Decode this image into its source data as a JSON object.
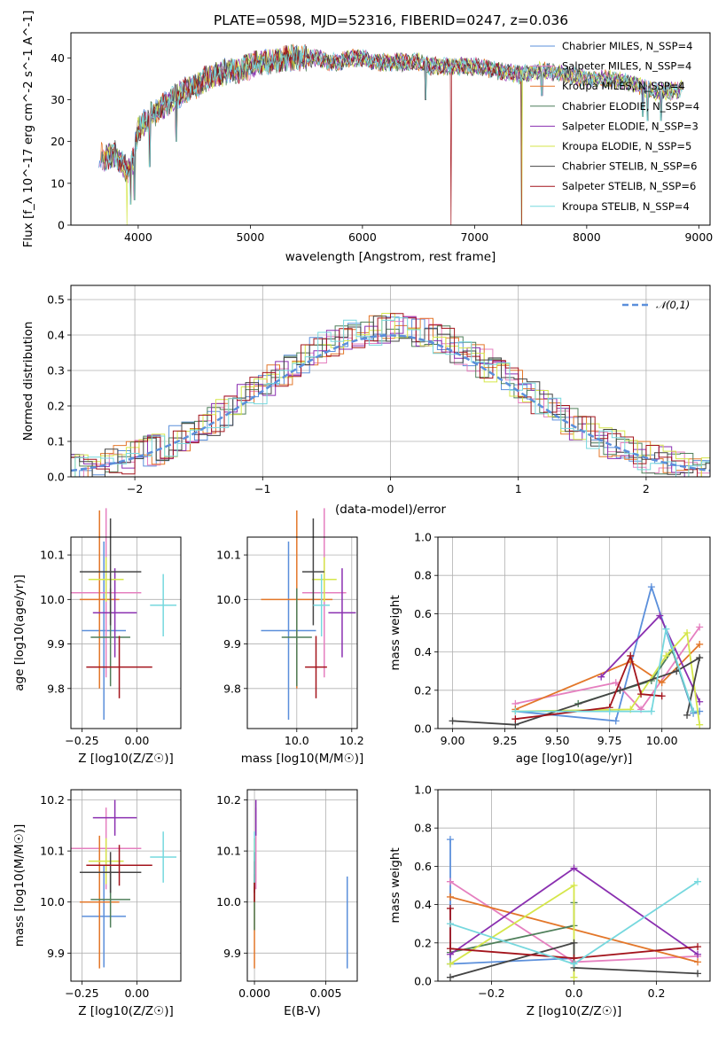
{
  "figure": {
    "title": "PLATE=0598, MJD=52316, FIBERID=0247, z=0.036"
  },
  "models": [
    {
      "name": "Chabrier MILES",
      "nssp": "4",
      "color": "#5b8fdb"
    },
    {
      "name": "Salpeter MILES",
      "nssp": "4",
      "color": "#e57fbf"
    },
    {
      "name": "Kroupa MILES",
      "nssp": "4",
      "color": "#e3772a"
    },
    {
      "name": "Chabrier ELODIE",
      "nssp": "4",
      "color": "#4f7f5a"
    },
    {
      "name": "Salpeter ELODIE",
      "nssp": "3",
      "color": "#8a2fb0"
    },
    {
      "name": "Kroupa ELODIE",
      "nssp": "5",
      "color": "#d5e64a"
    },
    {
      "name": "Chabrier STELIB",
      "nssp": "6",
      "color": "#444444"
    },
    {
      "name": "Salpeter STELIB",
      "nssp": "6",
      "color": "#a3141c"
    },
    {
      "name": "Kroupa STELIB",
      "nssp": "4",
      "color": "#76d8de"
    }
  ],
  "chart_data": [
    {
      "id": "spectrum",
      "type": "line",
      "title": "PLATE=0598, MJD=52316, FIBERID=0247, z=0.036",
      "xlabel": "wavelength [Angstrom, rest frame]",
      "ylabel": "Flux [f_λ 10^-17 erg cm^-2 s^-1 A^-1]",
      "xlim": [
        3400,
        9100
      ],
      "ylim": [
        0,
        46
      ],
      "xticks": [
        4000,
        5000,
        6000,
        7000,
        8000,
        9000
      ],
      "yticks": [
        0,
        10,
        20,
        30,
        40
      ],
      "grid": false,
      "legend": "top-right",
      "legend_label_template": "{name}, N_SSP={nssp}",
      "continuum": {
        "x": [
          3650,
          3700,
          3800,
          3900,
          3950,
          4000,
          4100,
          4200,
          4300,
          4400,
          4500,
          4600,
          4700,
          4800,
          4900,
          5000,
          5100,
          5200,
          5300,
          5400,
          5500,
          5600,
          5700,
          5800,
          5900,
          6000,
          6100,
          6200,
          6300,
          6400,
          6500,
          6600,
          6700,
          6800,
          6900,
          7000,
          7200,
          7400,
          7600,
          7800,
          8000,
          8200,
          8400,
          8600,
          8800,
          8850
        ],
        "y": [
          17,
          16,
          17,
          13,
          15,
          23,
          26,
          28,
          30,
          32,
          33,
          35,
          36,
          37,
          37,
          38,
          39,
          39,
          40,
          40,
          40,
          40,
          39,
          39,
          40,
          40,
          39,
          39,
          39,
          39,
          39,
          38,
          38,
          38,
          38,
          38,
          37,
          36,
          37,
          36,
          35,
          35,
          34,
          32,
          32,
          33
        ]
      },
      "notes": "Spectrum with 9 overlaid SSP model fits; notable dips to 0 near 3900, 6790 and 7420 Angstrom."
    },
    {
      "id": "residual-histogram",
      "type": "bar",
      "xlabel": "(data-model)/error",
      "ylabel": "Normed distribution",
      "xlim": [
        -2.5,
        2.5
      ],
      "ylim": [
        0,
        0.54
      ],
      "xticks": [
        -2,
        -1,
        0,
        1,
        2
      ],
      "yticks": [
        0.0,
        0.1,
        0.2,
        0.3,
        0.4,
        0.5
      ],
      "grid": true,
      "legend": "top-right",
      "reference_curve": {
        "label": "𝒩(0,1)",
        "mean": 0,
        "sigma": 1,
        "style": "dashed",
        "color": "#5b8fdb"
      },
      "bin_width": 0.1
    },
    {
      "id": "age-vs-Z",
      "type": "scatter",
      "xlabel": "Z [log10(Z/Z☉)]",
      "ylabel": "age [log10(age/yr)]",
      "xlim": [
        -0.3,
        0.2
      ],
      "ylim": [
        9.71,
        10.14
      ],
      "xticks": [
        -0.25,
        0.0
      ],
      "yticks": [
        9.8,
        9.9,
        10.0,
        10.1
      ],
      "grid": true,
      "points": [
        {
          "model": 0,
          "x": -0.15,
          "xerr": 0.1,
          "y": 9.93,
          "yerr": 0.2
        },
        {
          "model": 1,
          "x": -0.14,
          "xerr": 0.16,
          "y": 10.015,
          "yerr": 0.19
        },
        {
          "model": 2,
          "x": -0.17,
          "xerr": 0.09,
          "y": 10.0,
          "yerr": 0.2
        },
        {
          "model": 3,
          "x": -0.12,
          "xerr": 0.09,
          "y": 9.915,
          "yerr": 0.11
        },
        {
          "model": 4,
          "x": -0.1,
          "xerr": 0.1,
          "y": 9.97,
          "yerr": 0.1
        },
        {
          "model": 5,
          "x": -0.14,
          "xerr": 0.08,
          "y": 10.045,
          "yerr": 0.05
        },
        {
          "model": 6,
          "x": -0.12,
          "xerr": 0.14,
          "y": 10.062,
          "yerr": 0.12
        },
        {
          "model": 7,
          "x": -0.08,
          "xerr": 0.15,
          "y": 9.848,
          "yerr": 0.07
        },
        {
          "model": 8,
          "x": 0.12,
          "xerr": 0.06,
          "y": 9.987,
          "yerr": 0.07
        }
      ]
    },
    {
      "id": "age-vs-mass",
      "type": "scatter",
      "xlabel": "mass [log10(M/M☉)]",
      "ylabel": "",
      "xlim": [
        9.82,
        10.22
      ],
      "ylim": [
        9.71,
        10.14
      ],
      "xticks": [
        10.0,
        10.2
      ],
      "yticks": [
        9.8,
        9.9,
        10.0,
        10.1
      ],
      "grid": true,
      "points": [
        {
          "model": 0,
          "x": 9.97,
          "xerr": 0.1,
          "y": 9.93,
          "yerr": 0.2
        },
        {
          "model": 1,
          "x": 10.1,
          "xerr": 0.08,
          "y": 10.015,
          "yerr": 0.19
        },
        {
          "model": 2,
          "x": 10.0,
          "xerr": 0.13,
          "y": 10.0,
          "yerr": 0.2
        },
        {
          "model": 3,
          "x": 10.0,
          "xerr": 0.055,
          "y": 9.915,
          "yerr": 0.11
        },
        {
          "model": 4,
          "x": 10.165,
          "xerr": 0.05,
          "y": 9.97,
          "yerr": 0.1
        },
        {
          "model": 5,
          "x": 10.1,
          "xerr": 0.045,
          "y": 10.045,
          "yerr": 0.05
        },
        {
          "model": 6,
          "x": 10.06,
          "xerr": 0.04,
          "y": 10.062,
          "yerr": 0.12
        },
        {
          "model": 7,
          "x": 10.07,
          "xerr": 0.04,
          "y": 9.848,
          "yerr": 0.07
        },
        {
          "model": 8,
          "x": 10.09,
          "xerr": 0.03,
          "y": 9.987,
          "yerr": 0.07
        }
      ]
    },
    {
      "id": "mass-weight-vs-age",
      "type": "line",
      "xlabel": "age [log10(age/yr)]",
      "ylabel": "mass weight",
      "xlim": [
        8.93,
        10.23
      ],
      "ylim": [
        0,
        1
      ],
      "xticks": [
        9.0,
        9.25,
        9.5,
        9.75,
        10.0
      ],
      "xticklabels": [
        "9.00",
        "9.25",
        "9.50",
        "9.75",
        "10.00"
      ],
      "yticks": [
        0.0,
        0.2,
        0.4,
        0.6,
        0.8,
        1.0
      ],
      "grid": true,
      "series": [
        {
          "model": 0,
          "x": [
            9.3,
            9.78,
            9.95,
            10.15,
            10.18
          ],
          "y": [
            0.09,
            0.04,
            0.74,
            0.08,
            0.09
          ]
        },
        {
          "model": 1,
          "x": [
            9.3,
            9.78,
            9.9,
            10.18
          ],
          "y": [
            0.13,
            0.24,
            0.1,
            0.53
          ]
        },
        {
          "model": 2,
          "x": [
            9.3,
            9.85,
            10.0,
            10.18
          ],
          "y": [
            0.1,
            0.35,
            0.24,
            0.44
          ]
        },
        {
          "model": 3,
          "x": [
            9.6,
            9.95,
            10.05,
            10.15
          ],
          "y": [
            0.13,
            0.25,
            0.41,
            0.09
          ]
        },
        {
          "model": 4,
          "x": [
            9.71,
            9.99,
            10.18
          ],
          "y": [
            0.27,
            0.59,
            0.14
          ]
        },
        {
          "model": 5,
          "x": [
            9.3,
            9.85,
            10.02,
            10.12,
            10.18
          ],
          "y": [
            0.09,
            0.1,
            0.38,
            0.5,
            0.02
          ]
        },
        {
          "model": 6,
          "x": [
            9.0,
            9.3,
            9.8,
            10.07,
            10.18,
            10.12
          ],
          "y": [
            0.04,
            0.02,
            0.2,
            0.3,
            0.37,
            0.07
          ]
        },
        {
          "model": 7,
          "x": [
            9.3,
            9.75,
            9.85,
            9.9,
            10.0
          ],
          "y": [
            0.05,
            0.11,
            0.38,
            0.18,
            0.17
          ]
        },
        {
          "model": 8,
          "x": [
            9.3,
            9.75,
            9.95,
            10.02,
            10.15
          ],
          "y": [
            0.09,
            0.09,
            0.09,
            0.52,
            0.09
          ]
        }
      ]
    },
    {
      "id": "mass-vs-Z",
      "type": "scatter",
      "xlabel": "Z [log10(Z/Z☉)]",
      "ylabel": "mass [log10(M/M☉)]",
      "xlim": [
        -0.3,
        0.2
      ],
      "ylim": [
        9.845,
        10.22
      ],
      "xticks": [
        -0.25,
        0.0
      ],
      "yticks": [
        9.9,
        10.0,
        10.1,
        10.2
      ],
      "grid": true,
      "points": [
        {
          "model": 0,
          "x": -0.15,
          "xerr": 0.1,
          "y": 9.972,
          "yerr": 0.1
        },
        {
          "model": 1,
          "x": -0.14,
          "xerr": 0.16,
          "y": 10.105,
          "yerr": 0.08
        },
        {
          "model": 2,
          "x": -0.17,
          "xerr": 0.09,
          "y": 10.0,
          "yerr": 0.13
        },
        {
          "model": 3,
          "x": -0.12,
          "xerr": 0.09,
          "y": 10.005,
          "yerr": 0.055
        },
        {
          "model": 4,
          "x": -0.1,
          "xerr": 0.1,
          "y": 10.165,
          "yerr": 0.035
        },
        {
          "model": 5,
          "x": -0.14,
          "xerr": 0.08,
          "y": 10.08,
          "yerr": 0.045
        },
        {
          "model": 6,
          "x": -0.12,
          "xerr": 0.14,
          "y": 10.058,
          "yerr": 0.04
        },
        {
          "model": 7,
          "x": -0.08,
          "xerr": 0.15,
          "y": 10.072,
          "yerr": 0.04
        },
        {
          "model": 8,
          "x": 0.12,
          "xerr": 0.06,
          "y": 10.088,
          "yerr": 0.05
        }
      ]
    },
    {
      "id": "mass-vs-EBV",
      "type": "scatter",
      "xlabel": "E(B-V)",
      "ylabel": "",
      "xlim": [
        -0.0005,
        0.0072
      ],
      "ylim": [
        9.845,
        10.22
      ],
      "xticks": [
        0.0,
        0.005
      ],
      "xticklabels": [
        "0.000",
        "0.005"
      ],
      "yticks": [
        9.9,
        10.0,
        10.1,
        10.2
      ],
      "grid": true,
      "points": [
        {
          "model": 0,
          "x": 0.0065,
          "xerr": 0,
          "y": 9.96,
          "yerr": 0.09
        },
        {
          "model": 1,
          "x": 0.0001,
          "xerr": 0,
          "y": 10.105,
          "yerr": 0.08
        },
        {
          "model": 2,
          "x": 0.0,
          "xerr": 0,
          "y": 9.95,
          "yerr": 0.08
        },
        {
          "model": 3,
          "x": 0.0,
          "xerr": 0,
          "y": 10.0,
          "yerr": 0.055
        },
        {
          "model": 4,
          "x": 0.0001,
          "xerr": 0,
          "y": 10.165,
          "yerr": 0.035
        },
        {
          "model": 5,
          "x": 0.0,
          "xerr": 0,
          "y": 10.08,
          "yerr": 0.045
        },
        {
          "model": 6,
          "x": 0.0,
          "xerr": 0,
          "y": 10.058,
          "yerr": 0.04
        },
        {
          "model": 7,
          "x": 0.0,
          "xerr": 0,
          "y": 10.04,
          "yerr": 0.04
        },
        {
          "model": 8,
          "x": 0.0,
          "xerr": 0,
          "y": 10.088,
          "yerr": 0.05
        }
      ]
    },
    {
      "id": "mass-weight-vs-Z",
      "type": "line",
      "xlabel": "Z [log10(Z/Z☉)]",
      "ylabel": "mass weight",
      "xlim": [
        -0.33,
        0.33
      ],
      "ylim": [
        0,
        1
      ],
      "xticks": [
        -0.2,
        0.0,
        0.2
      ],
      "xticklabels": [
        "−0.2",
        "0.0",
        "0.2"
      ],
      "yticks": [
        0.0,
        0.2,
        0.4,
        0.6,
        0.8,
        1.0
      ],
      "grid": true,
      "series": [
        {
          "model": 0,
          "x": [
            -0.3,
            -0.3,
            0.0
          ],
          "y": [
            0.74,
            0.09,
            0.12
          ]
        },
        {
          "model": 1,
          "x": [
            -0.3,
            0.0,
            0.3
          ],
          "y": [
            0.52,
            0.1,
            0.13
          ]
        },
        {
          "model": 2,
          "x": [
            -0.3,
            0.3
          ],
          "y": [
            0.44,
            0.1
          ]
        },
        {
          "model": 3,
          "x": [
            -0.3,
            0.0,
            0.0
          ],
          "y": [
            0.15,
            0.29,
            0.41
          ]
        },
        {
          "model": 4,
          "x": [
            -0.3,
            0.0,
            0.3
          ],
          "y": [
            0.14,
            0.59,
            0.14
          ]
        },
        {
          "model": 5,
          "x": [
            -0.3,
            0.0,
            0.0
          ],
          "y": [
            0.09,
            0.5,
            0.02
          ]
        },
        {
          "model": 6,
          "x": [
            -0.3,
            0.0,
            0.0,
            0.3
          ],
          "y": [
            0.02,
            0.2,
            0.07,
            0.04
          ]
        },
        {
          "model": 7,
          "x": [
            -0.3,
            -0.3,
            0.0,
            0.3
          ],
          "y": [
            0.38,
            0.17,
            0.12,
            0.18
          ]
        },
        {
          "model": 8,
          "x": [
            -0.3,
            0.0,
            0.3
          ],
          "y": [
            0.3,
            0.09,
            0.52
          ]
        }
      ]
    }
  ]
}
